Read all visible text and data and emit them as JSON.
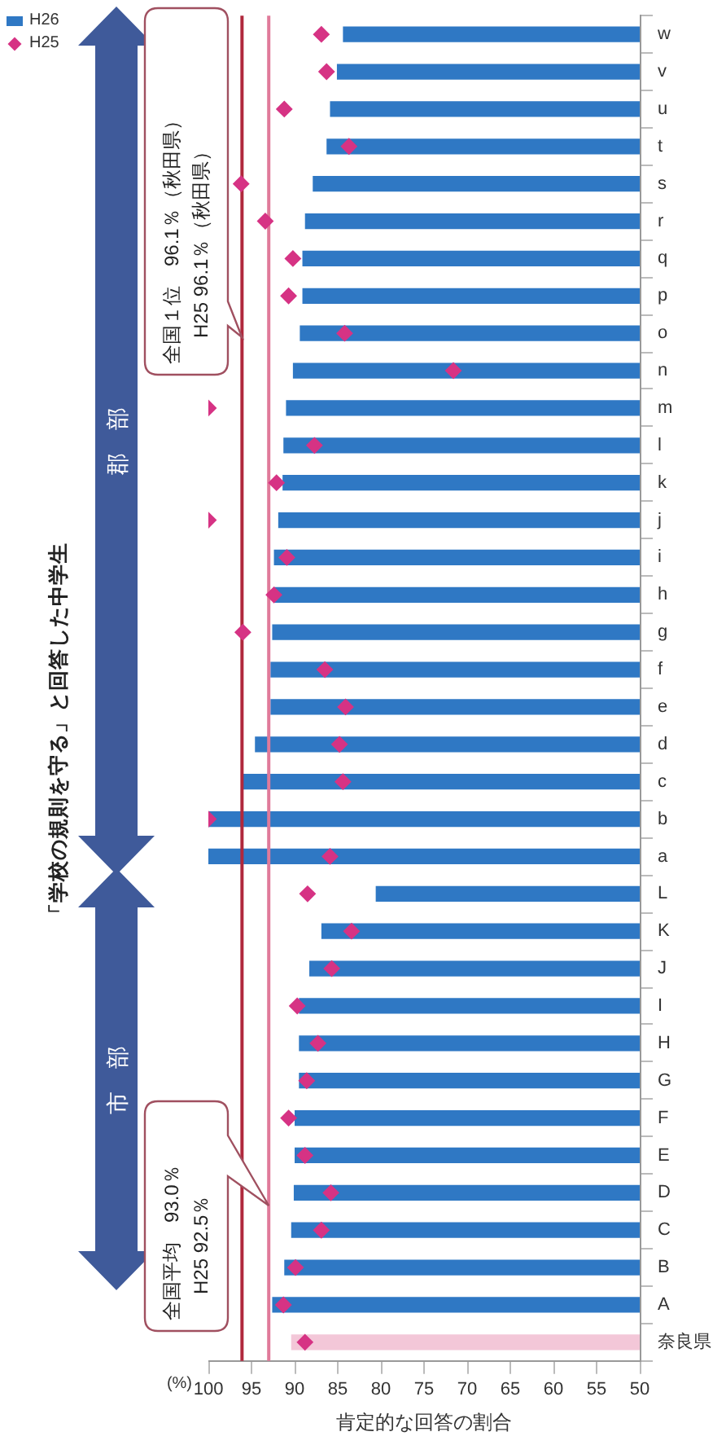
{
  "chart_data": {
    "type": "bar",
    "orientation": "horizontal",
    "title": "「学校の規則を守る」と回答した中学生",
    "xlabel": "肯定的な回答の割合",
    "categories": [
      "w",
      "v",
      "u",
      "t",
      "s",
      "r",
      "q",
      "p",
      "o",
      "n",
      "m",
      "l",
      "k",
      "j",
      "i",
      "h",
      "g",
      "f",
      "e",
      "d",
      "c",
      "b",
      "a",
      "L",
      "K",
      "J",
      "I",
      "H",
      "G",
      "F",
      "E",
      "D",
      "C",
      "B",
      "A",
      "奈良県"
    ],
    "series": [
      {
        "name": "H26",
        "type": "bar",
        "color": "#2f78c4",
        "colors": [
          "#2f78c4",
          "#2f78c4",
          "#2f78c4",
          "#2f78c4",
          "#2f78c4",
          "#2f78c4",
          "#2f78c4",
          "#2f78c4",
          "#2f78c4",
          "#2f78c4",
          "#2f78c4",
          "#2f78c4",
          "#2f78c4",
          "#2f78c4",
          "#2f78c4",
          "#2f78c4",
          "#2f78c4",
          "#2f78c4",
          "#2f78c4",
          "#2f78c4",
          "#2f78c4",
          "#2f78c4",
          "#2f78c4",
          "#2f78c4",
          "#2f78c4",
          "#2f78c4",
          "#2f78c4",
          "#2f78c4",
          "#2f78c4",
          "#2f78c4",
          "#2f78c4",
          "#2f78c4",
          "#2f78c4",
          "#2f78c4",
          "#2f78c4",
          "#f3c7d8"
        ],
        "values": [
          84.4,
          85.1,
          85.9,
          86.3,
          87.9,
          88.8,
          89.1,
          89.1,
          89.4,
          90.2,
          91.0,
          91.3,
          91.4,
          91.9,
          92.4,
          92.4,
          92.6,
          92.8,
          92.8,
          94.6,
          96.1,
          100.0,
          100.0,
          80.6,
          86.9,
          88.3,
          89.5,
          89.5,
          89.5,
          90.0,
          90.0,
          90.1,
          90.4,
          91.2,
          92.6,
          90.4
        ]
      },
      {
        "name": "H25",
        "type": "scatter",
        "color": "#d63384",
        "values": [
          86.9,
          86.3,
          91.2,
          83.7,
          96.2,
          93.4,
          90.2,
          90.7,
          84.2,
          71.6,
          100.0,
          87.7,
          92.1,
          100.0,
          90.9,
          92.4,
          96.0,
          86.5,
          84.1,
          84.8,
          84.4,
          100.0,
          85.9,
          88.5,
          83.4,
          85.7,
          89.7,
          87.3,
          88.6,
          90.7,
          88.8,
          85.8,
          86.9,
          89.9,
          91.3,
          88.8
        ]
      }
    ],
    "xlim": [
      100,
      50
    ],
    "xticks": [
      100,
      95,
      90,
      85,
      80,
      75,
      70,
      65,
      60,
      55,
      50
    ],
    "ref_lines": [
      {
        "axis": "x",
        "value": 93.0,
        "label": "全国平均　93.0％\nH25 92.5％",
        "color": "#e07a9a"
      },
      {
        "axis": "x",
        "value": 96.1,
        "label": "全国１位　96.1％（秋田県）\nH25 96.1％（秋田県）",
        "color": "#b0283c"
      }
    ],
    "annotations": [
      "(%)",
      "市　部",
      "郡　部"
    ],
    "marker": "diamond",
    "legend": "top left",
    "grid": false
  }
}
